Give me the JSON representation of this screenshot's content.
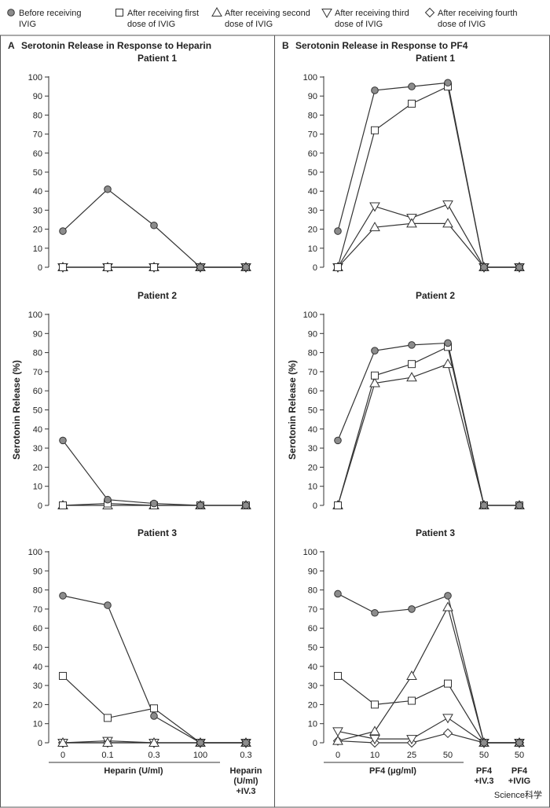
{
  "legend": [
    {
      "marker": "circle",
      "label_lines": [
        "Before receiving",
        "IVIG"
      ]
    },
    {
      "marker": "square",
      "label_lines": [
        "After receiving first",
        "dose of IVIG"
      ]
    },
    {
      "marker": "triangle-up",
      "label_lines": [
        "After receiving second",
        "dose of IVIG"
      ]
    },
    {
      "marker": "triangle-down",
      "label_lines": [
        "After receiving third",
        "dose of IVIG"
      ]
    },
    {
      "marker": "diamond",
      "label_lines": [
        "After receiving fourth",
        "dose of IVIG"
      ]
    }
  ],
  "colors": {
    "circle_fill": "#8c8c8c",
    "open_fill": "#ffffff",
    "stroke": "#333333",
    "axis": "#333333",
    "frame": "#555555"
  },
  "watermark": "Science科学",
  "chart_data": [
    {
      "id": "A",
      "type": "line",
      "panel_letter": "A",
      "panel_title": "Serotonin Release in Response to Heparin",
      "ylabel": "Serotonin Release (%)",
      "ylim": [
        0,
        100
      ],
      "yticks": [
        0,
        10,
        20,
        30,
        40,
        50,
        60,
        70,
        80,
        90,
        100
      ],
      "categories": [
        "0",
        "0.1",
        "0.3",
        "100",
        "0.3"
      ],
      "xlabel": "Heparin (U/ml)",
      "x_extra_label_lines": [
        "Heparin",
        "(U/ml)",
        "+IV.3"
      ],
      "subplots": [
        {
          "title": "Patient 1",
          "series": [
            {
              "marker": "circle",
              "values": [
                19,
                41,
                22,
                0,
                0
              ]
            },
            {
              "marker": "square",
              "values": [
                0,
                0,
                0,
                0,
                0
              ]
            },
            {
              "marker": "triangle-up",
              "values": [
                0,
                0,
                0,
                0,
                0
              ]
            },
            {
              "marker": "triangle-down",
              "values": [
                0,
                0,
                0,
                0,
                0
              ]
            }
          ]
        },
        {
          "title": "Patient 2",
          "series": [
            {
              "marker": "circle",
              "values": [
                34,
                3,
                1,
                0,
                0
              ]
            },
            {
              "marker": "square",
              "values": [
                0,
                1,
                0,
                0,
                0
              ]
            },
            {
              "marker": "triangle-up",
              "values": [
                0,
                0,
                0,
                0,
                0
              ]
            }
          ]
        },
        {
          "title": "Patient 3",
          "series": [
            {
              "marker": "circle",
              "values": [
                77,
                72,
                14,
                0,
                0
              ]
            },
            {
              "marker": "square",
              "values": [
                35,
                13,
                18,
                0,
                0
              ]
            },
            {
              "marker": "triangle-up",
              "values": [
                0,
                0,
                0,
                0,
                0
              ]
            },
            {
              "marker": "triangle-down",
              "values": [
                0,
                1,
                0,
                0,
                0
              ]
            },
            {
              "marker": "diamond",
              "values": [
                0,
                0,
                0,
                0,
                0
              ]
            }
          ]
        }
      ]
    },
    {
      "id": "B",
      "type": "line",
      "panel_letter": "B",
      "panel_title": "Serotonin Release in Response to PF4",
      "ylabel": "Serotonin Release (%)",
      "ylim": [
        0,
        100
      ],
      "yticks": [
        0,
        10,
        20,
        30,
        40,
        50,
        60,
        70,
        80,
        90,
        100
      ],
      "categories": [
        "0",
        "10",
        "25",
        "50",
        "50",
        "50"
      ],
      "xlabel": "PF4 (μg/ml)",
      "x_extra_label_lines": [
        [
          "PF4",
          "+IV.3"
        ],
        [
          "PF4",
          "+IVIG"
        ]
      ],
      "subplots": [
        {
          "title": "Patient 1",
          "series": [
            {
              "marker": "circle",
              "values": [
                19,
                93,
                95,
                97,
                0,
                0
              ]
            },
            {
              "marker": "square",
              "values": [
                0,
                72,
                86,
                95,
                0,
                0
              ]
            },
            {
              "marker": "triangle-up",
              "values": [
                0,
                21,
                23,
                23,
                0,
                0
              ]
            },
            {
              "marker": "triangle-down",
              "values": [
                0,
                32,
                26,
                33,
                0,
                0
              ]
            }
          ]
        },
        {
          "title": "Patient 2",
          "series": [
            {
              "marker": "circle",
              "values": [
                34,
                81,
                84,
                85,
                0,
                0
              ]
            },
            {
              "marker": "square",
              "values": [
                0,
                68,
                74,
                83,
                0,
                0
              ]
            },
            {
              "marker": "triangle-up",
              "values": [
                0,
                64,
                67,
                74,
                0,
                0
              ]
            }
          ]
        },
        {
          "title": "Patient 3",
          "series": [
            {
              "marker": "circle",
              "values": [
                78,
                68,
                70,
                77,
                0,
                0
              ]
            },
            {
              "marker": "square",
              "values": [
                35,
                20,
                22,
                31,
                0,
                0
              ]
            },
            {
              "marker": "triangle-up",
              "values": [
                1,
                6,
                35,
                71,
                0,
                0
              ]
            },
            {
              "marker": "triangle-down",
              "values": [
                6,
                2,
                2,
                13,
                0,
                0
              ]
            },
            {
              "marker": "diamond",
              "values": [
                1,
                0,
                0,
                5,
                0,
                0
              ]
            }
          ]
        }
      ]
    }
  ]
}
